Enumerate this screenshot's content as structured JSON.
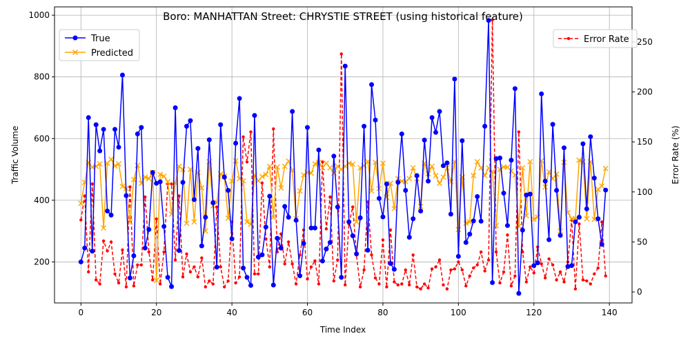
{
  "chart_data": {
    "type": "line",
    "title": "Boro: MANHATTAN Street: CHRYSTIE STREET (using historical feature)",
    "xlabel": "Time Index",
    "ylabel": "Traffic Volume",
    "ylabel_right": "Error Rate (%)",
    "xlim": [
      -7,
      146
    ],
    "ylim": [
      67,
      1027
    ],
    "ylim_right": [
      -11,
      285
    ],
    "xticks": [
      0,
      20,
      40,
      60,
      80,
      100,
      120,
      140
    ],
    "yticks": [
      200,
      400,
      600,
      800,
      1000
    ],
    "yticks_right": [
      0,
      50,
      100,
      150,
      200,
      250
    ],
    "grid": true,
    "legend_left": "top-left",
    "legend_right": "top-right",
    "colors": {
      "true": "#0000ff",
      "predicted": "#ffa500",
      "error": "#ff0000"
    },
    "x": [
      0,
      1,
      2,
      3,
      4,
      5,
      6,
      7,
      8,
      9,
      10,
      11,
      12,
      13,
      14,
      15,
      16,
      17,
      18,
      19,
      20,
      21,
      22,
      23,
      24,
      25,
      26,
      27,
      28,
      29,
      30,
      31,
      32,
      33,
      34,
      35,
      36,
      37,
      38,
      39,
      40,
      41,
      42,
      43,
      44,
      45,
      46,
      47,
      48,
      49,
      50,
      51,
      52,
      53,
      54,
      55,
      56,
      57,
      58,
      59,
      60,
      61,
      62,
      63,
      64,
      65,
      66,
      67,
      68,
      69,
      70,
      71,
      72,
      73,
      74,
      75,
      76,
      77,
      78,
      79,
      80,
      81,
      82,
      83,
      84,
      85,
      86,
      87,
      88,
      89,
      90,
      91,
      92,
      93,
      94,
      95,
      96,
      97,
      98,
      99,
      100,
      101,
      102,
      103,
      104,
      105,
      106,
      107,
      108,
      109,
      110,
      111,
      112,
      113,
      114,
      115,
      116,
      117,
      118,
      119,
      120,
      121,
      122,
      123,
      124,
      125,
      126,
      127,
      128,
      129,
      130,
      131,
      132,
      133,
      134,
      135,
      136,
      137,
      138,
      139
    ],
    "series": [
      {
        "name": "True",
        "axis": "left",
        "style": "solid",
        "marker": "circle",
        "values": [
          200,
          245,
          668,
          235,
          645,
          560,
          630,
          365,
          352,
          630,
          572,
          806,
          415,
          148,
          220,
          615,
          636,
          245,
          305,
          490,
          455,
          460,
          315,
          150,
          120,
          700,
          237,
          458,
          640,
          658,
          402,
          568,
          252,
          345,
          596,
          392,
          183,
          645,
          475,
          432,
          275,
          585,
          730,
          180,
          150,
          124,
          675,
          216,
          223,
          313,
          413,
          125,
          277,
          245,
          380,
          345,
          688,
          335,
          155,
          260,
          636,
          310,
          310,
          563,
          203,
          242,
          263,
          543,
          378,
          150,
          835,
          330,
          285,
          226,
          343,
          640,
          238,
          775,
          660,
          406,
          346,
          453,
          195,
          176,
          458,
          615,
          432,
          280,
          340,
          480,
          365,
          595,
          462,
          668,
          620,
          688,
          512,
          521,
          355,
          793,
          218,
          593,
          263,
          290,
          333,
          412,
          332,
          640,
          983,
          133,
          535,
          537,
          423,
          318,
          530,
          762,
          98,
          303,
          417,
          420,
          188,
          197,
          745,
          462,
          272,
          646,
          432,
          286,
          570,
          185,
          188,
          330,
          345,
          583,
          372,
          606,
          472,
          340,
          257,
          433
        ]
      },
      {
        "name": "Predicted",
        "axis": "left",
        "style": "solid",
        "marker": "x",
        "values": [
          390,
          458,
          523,
          507,
          510,
          518,
          310,
          520,
          533,
          511,
          518,
          445,
          438,
          330,
          467,
          513,
          455,
          475,
          470,
          490,
          140,
          484,
          478,
          460,
          355,
          456,
          510,
          500,
          325,
          500,
          330,
          490,
          440,
          300,
          525,
          382,
          392,
          485,
          478,
          342,
          462,
          528,
          470,
          463,
          330,
          322,
          481,
          463,
          477,
          483,
          510,
          345,
          508,
          440,
          510,
          527,
          497,
          340,
          430,
          482,
          490,
          488,
          518,
          523,
          505,
          520,
          505,
          488,
          510,
          500,
          510,
          520,
          517,
          330,
          505,
          512,
          525,
          430,
          523,
          438,
          520,
          410,
          455,
          373,
          470,
          462,
          460,
          470,
          505,
          470,
          380,
          520,
          486,
          510,
          480,
          455,
          475,
          505,
          460,
          525,
          305,
          475,
          325,
          330,
          480,
          525,
          505,
          480,
          505,
          493,
          318,
          500,
          508,
          507,
          495,
          482,
          315,
          505,
          350,
          525,
          338,
          345,
          528,
          443,
          492,
          470,
          485,
          300,
          523,
          360,
          340,
          340,
          530,
          525,
          340,
          525,
          338,
          435,
          446,
          503
        ]
      },
      {
        "name": "Error Rate",
        "axis": "right",
        "style": "dashed",
        "marker": "dot",
        "values": [
          72,
          96,
          20,
          108,
          12,
          8,
          51,
          41,
          50,
          18,
          9,
          42,
          5,
          105,
          6,
          27,
          27,
          95,
          40,
          12,
          73,
          8,
          40,
          108,
          108,
          32,
          96,
          15,
          38,
          20,
          25,
          15,
          34,
          5,
          11,
          8,
          85,
          25,
          5,
          11,
          70,
          9,
          15,
          155,
          130,
          160,
          18,
          18,
          109,
          53,
          25,
          163,
          40,
          58,
          28,
          50,
          28,
          8,
          37,
          62,
          13,
          25,
          31,
          8,
          130,
          63,
          95,
          11,
          32,
          238,
          7,
          68,
          85,
          37,
          5,
          22,
          90,
          37,
          14,
          8,
          52,
          5,
          62,
          10,
          7,
          8,
          22,
          7,
          37,
          5,
          3,
          8,
          4,
          23,
          25,
          32,
          7,
          3,
          22,
          23,
          30,
          22,
          6,
          16,
          24,
          27,
          40,
          21,
          32,
          272,
          40,
          9,
          20,
          57,
          6,
          16,
          160,
          40,
          10,
          25,
          19,
          45,
          28,
          14,
          33,
          27,
          12,
          20,
          10,
          30,
          72,
          3,
          68,
          12,
          11,
          8,
          18,
          24,
          70,
          16
        ]
      }
    ]
  }
}
